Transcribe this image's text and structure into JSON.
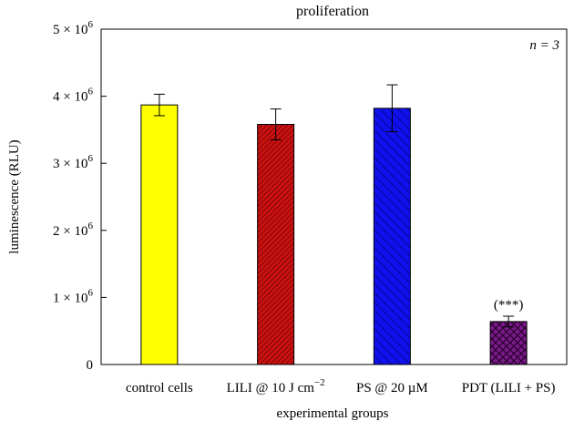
{
  "chart_data": {
    "type": "bar",
    "title": "proliferation",
    "annotation_n": "n = 3",
    "xlabel": "experimental groups",
    "ylabel": "luminescence (RLU)",
    "ylim": [
      0,
      5000000
    ],
    "y_ticks": [
      {
        "value": 0,
        "mantissa": "0",
        "exp": ""
      },
      {
        "value": 1000000,
        "mantissa": "1 × 10",
        "exp": "6"
      },
      {
        "value": 2000000,
        "mantissa": "2 × 10",
        "exp": "6"
      },
      {
        "value": 3000000,
        "mantissa": "3 × 10",
        "exp": "6"
      },
      {
        "value": 4000000,
        "mantissa": "4 × 10",
        "exp": "6"
      },
      {
        "value": 5000000,
        "mantissa": "5 × 10",
        "exp": "6"
      }
    ],
    "categories": [
      {
        "label": "control cells",
        "sup": ""
      },
      {
        "label": "LILI @ 10 J cm",
        "sup": "−2"
      },
      {
        "label": "PS @ 20 µM",
        "sup": ""
      },
      {
        "label": "PDT (LILI + PS)",
        "sup": ""
      }
    ],
    "values": [
      3870000,
      3580000,
      3820000,
      640000
    ],
    "errors": [
      160000,
      230000,
      350000,
      80000
    ],
    "significance": [
      "",
      "",
      "",
      "(***)"
    ],
    "colors": [
      "#ffff00",
      "#cc1111",
      "#1111ee",
      "#7a1a8a"
    ],
    "patterns": [
      "solid",
      "diag-dense",
      "diag-wide",
      "crosshatch"
    ],
    "grid": false,
    "legend": "none"
  }
}
